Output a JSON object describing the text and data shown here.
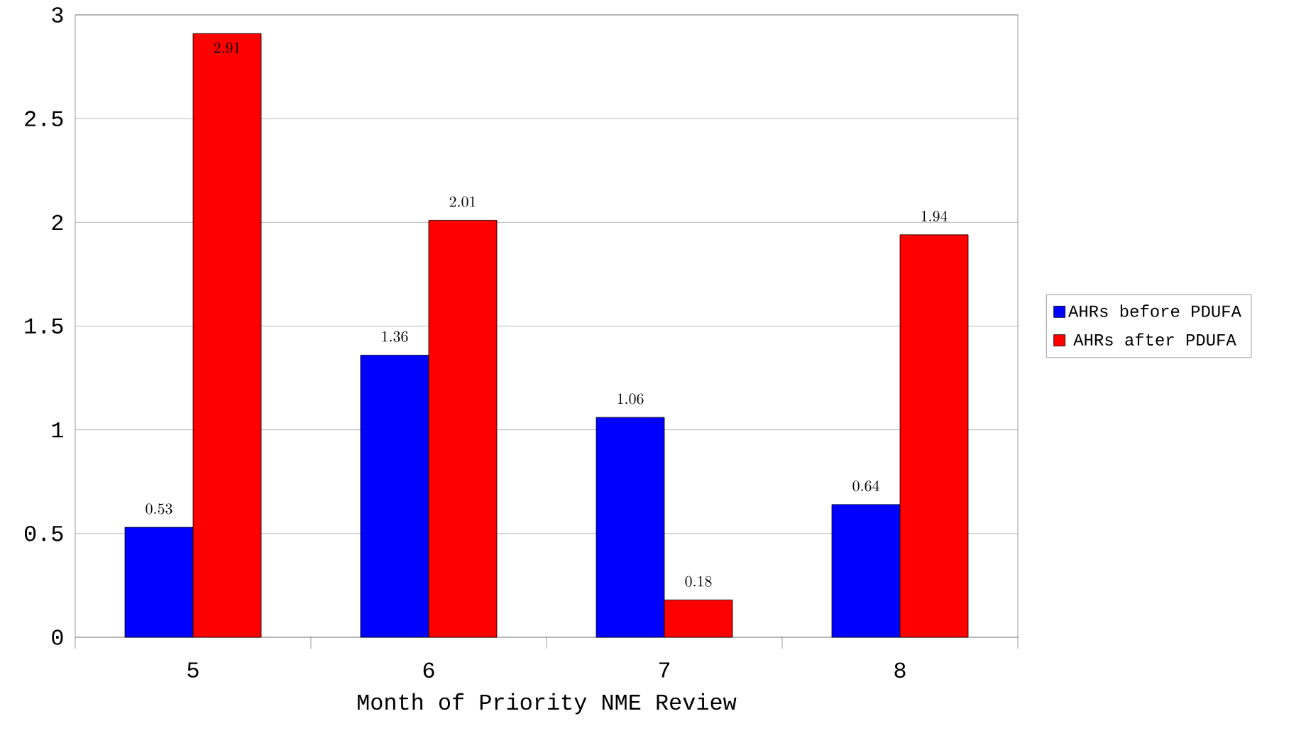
{
  "chart_data": {
    "type": "bar",
    "xlabel": "Month of Priority NME Review",
    "categories": [
      "5",
      "6",
      "7",
      "8"
    ],
    "series": [
      {
        "name": "AHRs before PDUFA",
        "color": "#0000ff",
        "values": [
          0.53,
          1.36,
          1.06,
          0.64
        ]
      },
      {
        "name": "AHRs after PDUFA",
        "color": "#ff0000",
        "values": [
          2.91,
          2.01,
          0.18,
          1.94
        ]
      }
    ],
    "ylim": [
      0,
      3
    ],
    "yticks": [
      0,
      0.5,
      1,
      1.5,
      2,
      2.5,
      3
    ],
    "grid": "y",
    "legend": "right",
    "data_labels": true
  }
}
